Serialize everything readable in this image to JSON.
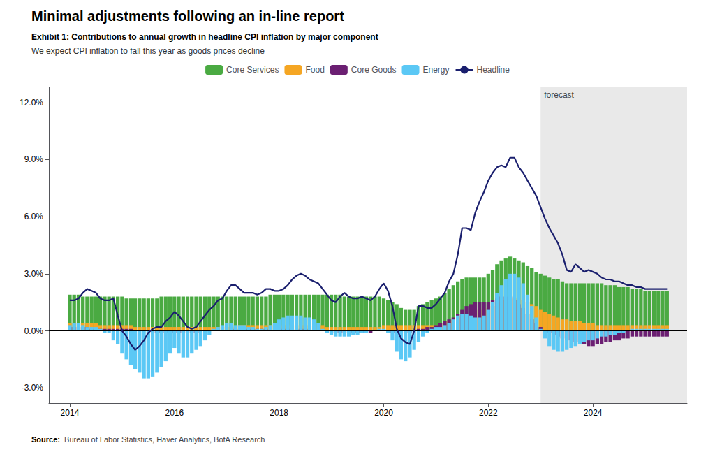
{
  "chart_data": {
    "type": "bar",
    "title": "Minimal adjustments following an in-line report",
    "exhibit_title": "Exhibit 1: Contributions to annual growth in headline CPI inflation by major component",
    "subtitle": "We expect CPI inflation to fall this year as goods prices decline",
    "source_label": "Source:",
    "source_text": "  Bureau of Labor Statistics, Haver Analytics, BofA Research",
    "forecast": {
      "from": 2023.0,
      "to": 2025.8,
      "color": "#e9e9e9",
      "label": "forecast"
    },
    "stacked": true,
    "grid": false,
    "legend": "top",
    "xlim": [
      2013.6,
      2025.8
    ],
    "xticks": [
      2014,
      2016,
      2018,
      2020,
      2022,
      2024
    ],
    "ylim": [
      -0.038,
      0.128
    ],
    "yticks": [
      {
        "value": -0.03,
        "label": "-3.0%"
      },
      {
        "value": 0.0,
        "label": "0.0%"
      },
      {
        "value": 0.03,
        "label": "3.0%"
      },
      {
        "value": 0.06,
        "label": "6.0%"
      },
      {
        "value": 0.09,
        "label": "9.0%"
      },
      {
        "value": 0.12,
        "label": "12.0%"
      }
    ],
    "x": [
      2014.0,
      2014.083,
      2014.167,
      2014.25,
      2014.333,
      2014.417,
      2014.5,
      2014.583,
      2014.667,
      2014.75,
      2014.833,
      2014.917,
      2015.0,
      2015.083,
      2015.167,
      2015.25,
      2015.333,
      2015.417,
      2015.5,
      2015.583,
      2015.667,
      2015.75,
      2015.833,
      2015.917,
      2016.0,
      2016.083,
      2016.167,
      2016.25,
      2016.333,
      2016.417,
      2016.5,
      2016.583,
      2016.667,
      2016.75,
      2016.833,
      2016.917,
      2017.0,
      2017.083,
      2017.167,
      2017.25,
      2017.333,
      2017.417,
      2017.5,
      2017.583,
      2017.667,
      2017.75,
      2017.833,
      2017.917,
      2018.0,
      2018.083,
      2018.167,
      2018.25,
      2018.333,
      2018.417,
      2018.5,
      2018.583,
      2018.667,
      2018.75,
      2018.833,
      2018.917,
      2019.0,
      2019.083,
      2019.167,
      2019.25,
      2019.333,
      2019.417,
      2019.5,
      2019.583,
      2019.667,
      2019.75,
      2019.833,
      2019.917,
      2020.0,
      2020.083,
      2020.167,
      2020.25,
      2020.333,
      2020.417,
      2020.5,
      2020.583,
      2020.667,
      2020.75,
      2020.833,
      2020.917,
      2021.0,
      2021.083,
      2021.167,
      2021.25,
      2021.333,
      2021.417,
      2021.5,
      2021.583,
      2021.667,
      2021.75,
      2021.833,
      2021.917,
      2022.0,
      2022.083,
      2022.167,
      2022.25,
      2022.333,
      2022.417,
      2022.5,
      2022.583,
      2022.667,
      2022.75,
      2022.833,
      2022.917,
      2023.0,
      2023.083,
      2023.167,
      2023.25,
      2023.333,
      2023.417,
      2023.5,
      2023.583,
      2023.667,
      2023.75,
      2023.833,
      2023.917,
      2024.0,
      2024.083,
      2024.167,
      2024.25,
      2024.333,
      2024.417,
      2024.5,
      2024.583,
      2024.667,
      2024.75,
      2024.833,
      2024.917,
      2025.0,
      2025.083,
      2025.167,
      2025.25,
      2025.333,
      2025.417
    ],
    "series": [
      {
        "name": "Core Services",
        "color": "#4aaa42",
        "values": [
          0.019,
          0.019,
          0.019,
          0.018,
          0.018,
          0.018,
          0.018,
          0.018,
          0.018,
          0.018,
          0.018,
          0.018,
          0.018,
          0.017,
          0.017,
          0.017,
          0.017,
          0.017,
          0.017,
          0.017,
          0.017,
          0.018,
          0.018,
          0.018,
          0.018,
          0.018,
          0.018,
          0.018,
          0.018,
          0.018,
          0.018,
          0.018,
          0.018,
          0.018,
          0.018,
          0.018,
          0.018,
          0.018,
          0.018,
          0.018,
          0.018,
          0.018,
          0.018,
          0.018,
          0.018,
          0.018,
          0.019,
          0.019,
          0.019,
          0.019,
          0.019,
          0.019,
          0.019,
          0.019,
          0.019,
          0.019,
          0.019,
          0.019,
          0.019,
          0.019,
          0.019,
          0.019,
          0.019,
          0.018,
          0.018,
          0.018,
          0.018,
          0.018,
          0.018,
          0.018,
          0.018,
          0.018,
          0.017,
          0.016,
          0.015,
          0.014,
          0.012,
          0.011,
          0.011,
          0.011,
          0.013,
          0.014,
          0.015,
          0.016,
          0.017,
          0.018,
          0.02,
          0.022,
          0.024,
          0.026,
          0.027,
          0.028,
          0.028,
          0.028,
          0.028,
          0.028,
          0.03,
          0.032,
          0.035,
          0.037,
          0.038,
          0.039,
          0.038,
          0.037,
          0.036,
          0.034,
          0.033,
          0.031,
          0.03,
          0.029,
          0.028,
          0.027,
          0.027,
          0.026,
          0.025,
          0.025,
          0.025,
          0.025,
          0.025,
          0.025,
          0.025,
          0.025,
          0.025,
          0.024,
          0.024,
          0.024,
          0.023,
          0.023,
          0.023,
          0.022,
          0.022,
          0.022,
          0.021,
          0.021,
          0.021,
          0.021,
          0.021,
          0.021
        ]
      },
      {
        "name": "Food",
        "color": "#f5a623",
        "values": [
          0.004,
          0.004,
          0.004,
          0.004,
          0.004,
          0.004,
          0.004,
          0.003,
          0.003,
          0.003,
          0.003,
          0.003,
          0.003,
          0.003,
          0.003,
          0.002,
          0.002,
          0.002,
          0.002,
          0.002,
          0.002,
          0.002,
          0.002,
          0.002,
          0.002,
          0.002,
          0.002,
          0.002,
          0.002,
          0.002,
          0.002,
          0.002,
          0.002,
          0.002,
          0.002,
          0.002,
          0.002,
          0.002,
          0.002,
          0.003,
          0.003,
          0.003,
          0.003,
          0.003,
          0.003,
          0.003,
          0.003,
          0.003,
          0.003,
          0.003,
          0.003,
          0.003,
          0.003,
          0.003,
          0.003,
          0.003,
          0.003,
          0.003,
          0.003,
          0.002,
          0.002,
          0.002,
          0.002,
          0.002,
          0.002,
          0.002,
          0.002,
          0.002,
          0.002,
          0.002,
          0.002,
          0.002,
          0.003,
          0.003,
          0.003,
          0.003,
          0.003,
          0.003,
          0.003,
          0.003,
          0.003,
          0.003,
          0.003,
          0.003,
          0.003,
          0.004,
          0.005,
          0.005,
          0.006,
          0.007,
          0.008,
          0.009,
          0.01,
          0.011,
          0.011,
          0.011,
          0.012,
          0.013,
          0.014,
          0.015,
          0.016,
          0.017,
          0.017,
          0.017,
          0.016,
          0.015,
          0.014,
          0.013,
          0.011,
          0.01,
          0.009,
          0.008,
          0.007,
          0.006,
          0.006,
          0.005,
          0.005,
          0.005,
          0.004,
          0.004,
          0.004,
          0.003,
          0.003,
          0.003,
          0.003,
          0.003,
          0.003,
          0.003,
          0.003,
          0.003,
          0.003,
          0.003,
          0.003,
          0.003,
          0.003,
          0.003,
          0.003,
          0.003
        ]
      },
      {
        "name": "Core Goods",
        "color": "#6b1f72",
        "values": [
          0.002,
          0.002,
          0.002,
          0.002,
          0.002,
          0.001,
          0.001,
          0.001,
          0.001,
          0.001,
          0.001,
          0.001,
          0.001,
          0.001,
          0.001,
          0.0,
          0.0,
          0.0,
          0.0,
          -0.001,
          -0.001,
          -0.001,
          -0.001,
          -0.001,
          -0.001,
          -0.001,
          -0.001,
          -0.001,
          -0.001,
          -0.001,
          -0.001,
          0.0,
          0.0,
          0.0,
          0.0,
          0.0,
          0.0,
          0.0,
          0.001,
          0.001,
          0.001,
          0.001,
          0.001,
          0.001,
          0.001,
          0.001,
          0.0,
          0.0,
          0.0,
          0.001,
          0.001,
          0.001,
          0.001,
          0.001,
          0.001,
          0.001,
          0.001,
          0.0,
          0.0,
          -0.001,
          -0.001,
          -0.001,
          -0.001,
          -0.001,
          -0.001,
          -0.001,
          -0.001,
          -0.001,
          -0.001,
          -0.001,
          0.0,
          0.0,
          0.0,
          0.0,
          -0.001,
          -0.001,
          -0.001,
          -0.001,
          -0.001,
          0.0,
          0.001,
          0.001,
          0.002,
          0.002,
          0.003,
          0.004,
          0.005,
          0.006,
          0.007,
          0.009,
          0.011,
          0.013,
          0.014,
          0.015,
          0.015,
          0.015,
          0.015,
          0.016,
          0.017,
          0.018,
          0.018,
          0.018,
          0.016,
          0.014,
          0.012,
          0.009,
          0.006,
          0.004,
          0.002,
          0.0,
          -0.001,
          -0.002,
          -0.003,
          -0.004,
          -0.005,
          -0.005,
          -0.006,
          -0.006,
          -0.007,
          -0.008,
          -0.008,
          -0.007,
          -0.007,
          -0.006,
          -0.006,
          -0.005,
          -0.005,
          -0.004,
          -0.004,
          -0.003,
          -0.003,
          -0.003,
          -0.003,
          -0.003,
          -0.003,
          -0.003,
          -0.003,
          -0.003
        ]
      },
      {
        "name": "Energy",
        "color": "#5bc8f5",
        "values": [
          0.003,
          0.004,
          0.004,
          0.003,
          0.002,
          0.002,
          0.002,
          0.001,
          -0.001,
          -0.001,
          -0.005,
          -0.007,
          -0.012,
          -0.015,
          -0.018,
          -0.02,
          -0.022,
          -0.025,
          -0.025,
          -0.024,
          -0.022,
          -0.019,
          -0.016,
          -0.012,
          -0.009,
          -0.012,
          -0.014,
          -0.014,
          -0.012,
          -0.01,
          -0.008,
          -0.005,
          -0.002,
          0.001,
          0.002,
          0.003,
          0.004,
          0.004,
          0.003,
          0.003,
          0.003,
          0.002,
          0.002,
          0.001,
          0.001,
          0.002,
          0.003,
          0.004,
          0.006,
          0.007,
          0.008,
          0.008,
          0.008,
          0.008,
          0.007,
          0.007,
          0.006,
          0.004,
          0.001,
          -0.001,
          -0.002,
          -0.003,
          -0.003,
          -0.003,
          -0.003,
          -0.002,
          -0.002,
          -0.001,
          -0.001,
          0.0,
          0.0,
          0.001,
          0.001,
          -0.001,
          -0.005,
          -0.011,
          -0.015,
          -0.016,
          -0.014,
          -0.01,
          -0.006,
          -0.003,
          -0.001,
          0.001,
          0.002,
          0.002,
          0.003,
          0.004,
          0.006,
          0.008,
          0.009,
          0.009,
          0.008,
          0.007,
          0.007,
          0.008,
          0.011,
          0.015,
          0.02,
          0.024,
          0.027,
          0.03,
          0.03,
          0.028,
          0.025,
          0.019,
          0.013,
          0.007,
          0.001,
          -0.004,
          -0.008,
          -0.01,
          -0.011,
          -0.011,
          -0.01,
          -0.009,
          -0.008,
          -0.007,
          -0.006,
          -0.005,
          -0.005,
          -0.004,
          -0.003,
          -0.003,
          -0.002,
          -0.002,
          -0.001,
          -0.001,
          0.0,
          0.001,
          0.001,
          0.001,
          0.001,
          0.001,
          0.001,
          0.001,
          0.001,
          0.001
        ]
      },
      {
        "name": "Headline",
        "type": "line",
        "color": "#1a1f6e",
        "values": [
          0.016,
          0.016,
          0.017,
          0.02,
          0.022,
          0.021,
          0.02,
          0.017,
          0.016,
          0.016,
          0.017,
          0.008,
          0.0,
          -0.003,
          -0.007,
          -0.01,
          -0.008,
          -0.005,
          -0.001,
          0.001,
          0.002,
          0.002,
          0.005,
          0.007,
          0.01,
          0.008,
          0.005,
          0.002,
          0.001,
          0.002,
          0.005,
          0.008,
          0.011,
          0.013,
          0.016,
          0.017,
          0.021,
          0.024,
          0.024,
          0.022,
          0.02,
          0.02,
          0.02,
          0.019,
          0.02,
          0.022,
          0.022,
          0.021,
          0.021,
          0.022,
          0.024,
          0.027,
          0.029,
          0.03,
          0.029,
          0.027,
          0.026,
          0.025,
          0.022,
          0.019,
          0.016,
          0.015,
          0.018,
          0.02,
          0.018,
          0.017,
          0.017,
          0.018,
          0.017,
          0.016,
          0.018,
          0.022,
          0.025,
          0.021,
          0.013,
          0.001,
          -0.004,
          -0.006,
          -0.007,
          0.0,
          0.013,
          0.013,
          0.012,
          0.012,
          0.014,
          0.017,
          0.02,
          0.026,
          0.03,
          0.04,
          0.054,
          0.054,
          0.053,
          0.062,
          0.068,
          0.073,
          0.079,
          0.083,
          0.086,
          0.087,
          0.086,
          0.091,
          0.091,
          0.086,
          0.083,
          0.079,
          0.075,
          0.071,
          0.065,
          0.059,
          0.054,
          0.05,
          0.046,
          0.04,
          0.032,
          0.031,
          0.035,
          0.033,
          0.031,
          0.032,
          0.031,
          0.03,
          0.028,
          0.027,
          0.027,
          0.026,
          0.026,
          0.025,
          0.024,
          0.024,
          0.023,
          0.023,
          0.022,
          0.022,
          0.022,
          0.022,
          0.022,
          0.022
        ]
      }
    ]
  }
}
